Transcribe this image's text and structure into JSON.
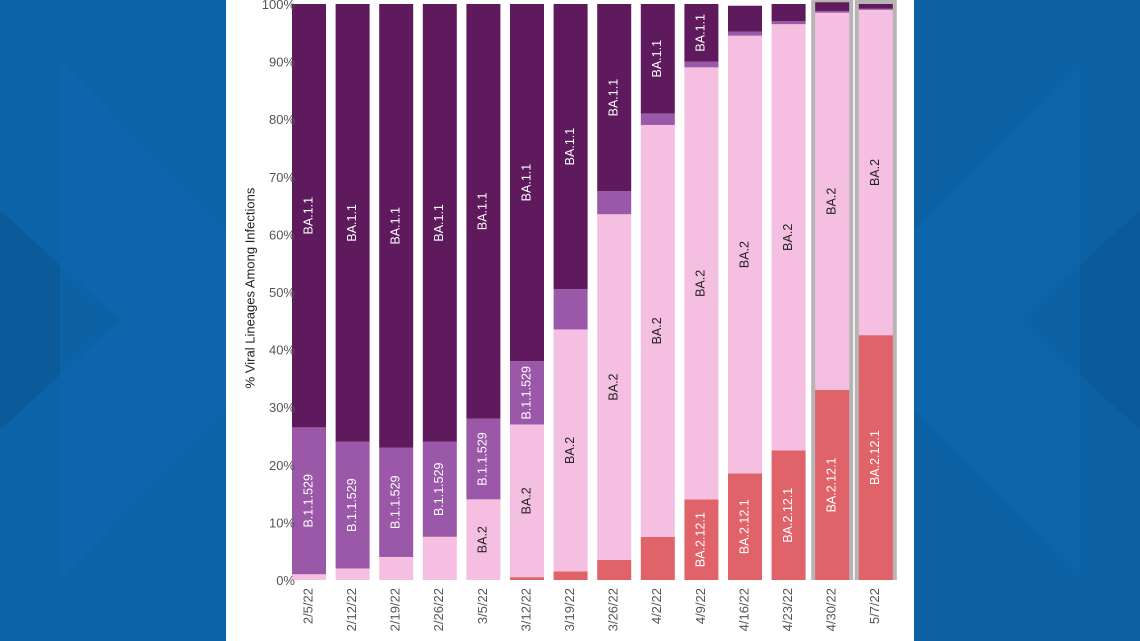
{
  "colors": {
    "page_background": "#0a5ea0",
    "panel_background": "#ffffff",
    "highlight_column": "#b9b4b4"
  },
  "chart_data": {
    "type": "bar",
    "stacked": true,
    "orientation": "vertical",
    "title": "",
    "xlabel": "",
    "ylabel": "% Viral Lineages Among Infections",
    "ylim": [
      0,
      100
    ],
    "yticks": [
      "0%",
      "10%",
      "20%",
      "30%",
      "40%",
      "50%",
      "60%",
      "70%",
      "80%",
      "90%",
      "100%"
    ],
    "grid": false,
    "legend": "none",
    "highlighted_categories": [
      "4/30/22",
      "5/7/22"
    ],
    "categories": [
      "2/5/22",
      "2/12/22",
      "2/19/22",
      "2/26/22",
      "3/5/22",
      "3/12/22",
      "3/19/22",
      "3/26/22",
      "4/2/22",
      "4/9/22",
      "4/16/22",
      "4/23/22",
      "4/30/22",
      "5/7/22"
    ],
    "series": [
      {
        "name": "BA.2.12.1",
        "color": "#e0636a",
        "text_color": "#ffffff",
        "labeled": [
          false,
          false,
          false,
          false,
          false,
          false,
          false,
          false,
          false,
          true,
          true,
          true,
          true,
          true
        ],
        "values": [
          0,
          0,
          0,
          0,
          0,
          0.5,
          1.5,
          3.5,
          7.5,
          14,
          18.5,
          22.5,
          33,
          42.5
        ]
      },
      {
        "name": "BA.2",
        "color": "#f4bfe0",
        "text_color": "#222222",
        "labeled": [
          false,
          false,
          false,
          false,
          true,
          true,
          true,
          true,
          true,
          true,
          true,
          true,
          true,
          true
        ],
        "values": [
          1,
          2,
          4,
          7.5,
          14,
          26.5,
          42,
          60,
          71.5,
          75,
          76,
          74,
          65.5,
          56.5
        ]
      },
      {
        "name": "B.1.1.529",
        "color": "#9b58a8",
        "text_color": "#ffffff",
        "labeled": [
          true,
          true,
          true,
          true,
          true,
          true,
          false,
          false,
          false,
          false,
          false,
          false,
          false,
          false
        ],
        "values": [
          25.5,
          22,
          19,
          16.5,
          14,
          11,
          7,
          4,
          2,
          1,
          0.7,
          0.5,
          0.3,
          0.2
        ]
      },
      {
        "name": "BA.1.1",
        "color": "#5e1a5c",
        "text_color": "#ffffff",
        "labeled": [
          true,
          true,
          true,
          true,
          true,
          true,
          true,
          true,
          true,
          true,
          false,
          false,
          false,
          false
        ],
        "values": [
          73.5,
          76,
          77,
          76,
          72,
          62,
          49.5,
          32.5,
          19,
          10,
          4.5,
          3,
          1.5,
          0.8
        ]
      }
    ]
  }
}
